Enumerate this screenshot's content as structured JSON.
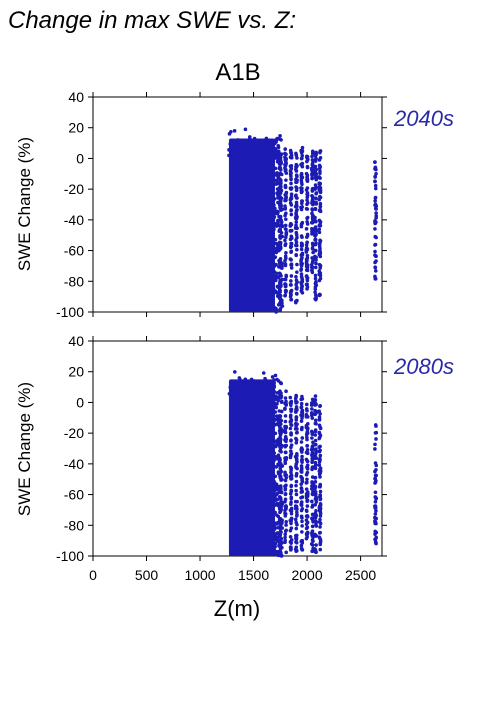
{
  "figure": {
    "title": "Change in max SWE vs. Z:",
    "scenario": "A1B",
    "point_color": "#1c1cb4",
    "label_color": "#2a2aa8"
  },
  "chart_data": [
    {
      "type": "scatter",
      "period_label": "2040s",
      "xlabel": "",
      "ylabel": "SWE Change (%)",
      "xlim": [
        0,
        2700
      ],
      "ylim": [
        -100,
        40
      ],
      "x_ticks": [
        0,
        500,
        1000,
        1500,
        2000,
        2500
      ],
      "y_ticks": [
        40,
        20,
        0,
        -20,
        -40,
        -60,
        -80,
        -100
      ],
      "grid": false,
      "dense_elevation_range": [
        1270,
        1700
      ],
      "dense_swe_range": [
        -100,
        13
      ],
      "scattered_columns": [
        {
          "x": 1750,
          "y_range": [
            -95,
            5
          ]
        },
        {
          "x": 1800,
          "y_range": [
            -90,
            8
          ]
        },
        {
          "x": 1850,
          "y_range": [
            -92,
            6
          ]
        },
        {
          "x": 1900,
          "y_range": [
            -95,
            5
          ]
        },
        {
          "x": 1950,
          "y_range": [
            -88,
            7
          ]
        },
        {
          "x": 2000,
          "y_range": [
            -85,
            3
          ]
        },
        {
          "x": 2050,
          "y_range": [
            -80,
            5
          ]
        },
        {
          "x": 2080,
          "y_range": [
            -92,
            5
          ]
        },
        {
          "x": 2120,
          "y_range": [
            -90,
            6
          ]
        },
        {
          "x": 2640,
          "y_range": [
            -80,
            0
          ]
        }
      ]
    },
    {
      "type": "scatter",
      "period_label": "2080s",
      "xlabel": "Z(m)",
      "ylabel": "SWE Change (%)",
      "xlim": [
        0,
        2700
      ],
      "ylim": [
        -100,
        40
      ],
      "x_ticks": [
        0,
        500,
        1000,
        1500,
        2000,
        2500
      ],
      "x_tick_labels": [
        "0",
        "500",
        "1000",
        "1500",
        "2000",
        "2500"
      ],
      "y_ticks": [
        40,
        20,
        0,
        -20,
        -40,
        -60,
        -80,
        -100
      ],
      "grid": false,
      "dense_elevation_range": [
        1270,
        1700
      ],
      "dense_swe_range": [
        -100,
        15
      ],
      "scattered_columns": [
        {
          "x": 1750,
          "y_range": [
            -100,
            10
          ]
        },
        {
          "x": 1800,
          "y_range": [
            -98,
            8
          ]
        },
        {
          "x": 1850,
          "y_range": [
            -97,
            7
          ]
        },
        {
          "x": 1900,
          "y_range": [
            -98,
            6
          ]
        },
        {
          "x": 1950,
          "y_range": [
            -97,
            4
          ]
        },
        {
          "x": 2000,
          "y_range": [
            -95,
            0
          ]
        },
        {
          "x": 2050,
          "y_range": [
            -97,
            2
          ]
        },
        {
          "x": 2080,
          "y_range": [
            -98,
            5
          ]
        },
        {
          "x": 2120,
          "y_range": [
            -96,
            -2
          ]
        },
        {
          "x": 2640,
          "y_range": [
            -92,
            -8
          ]
        }
      ]
    }
  ]
}
